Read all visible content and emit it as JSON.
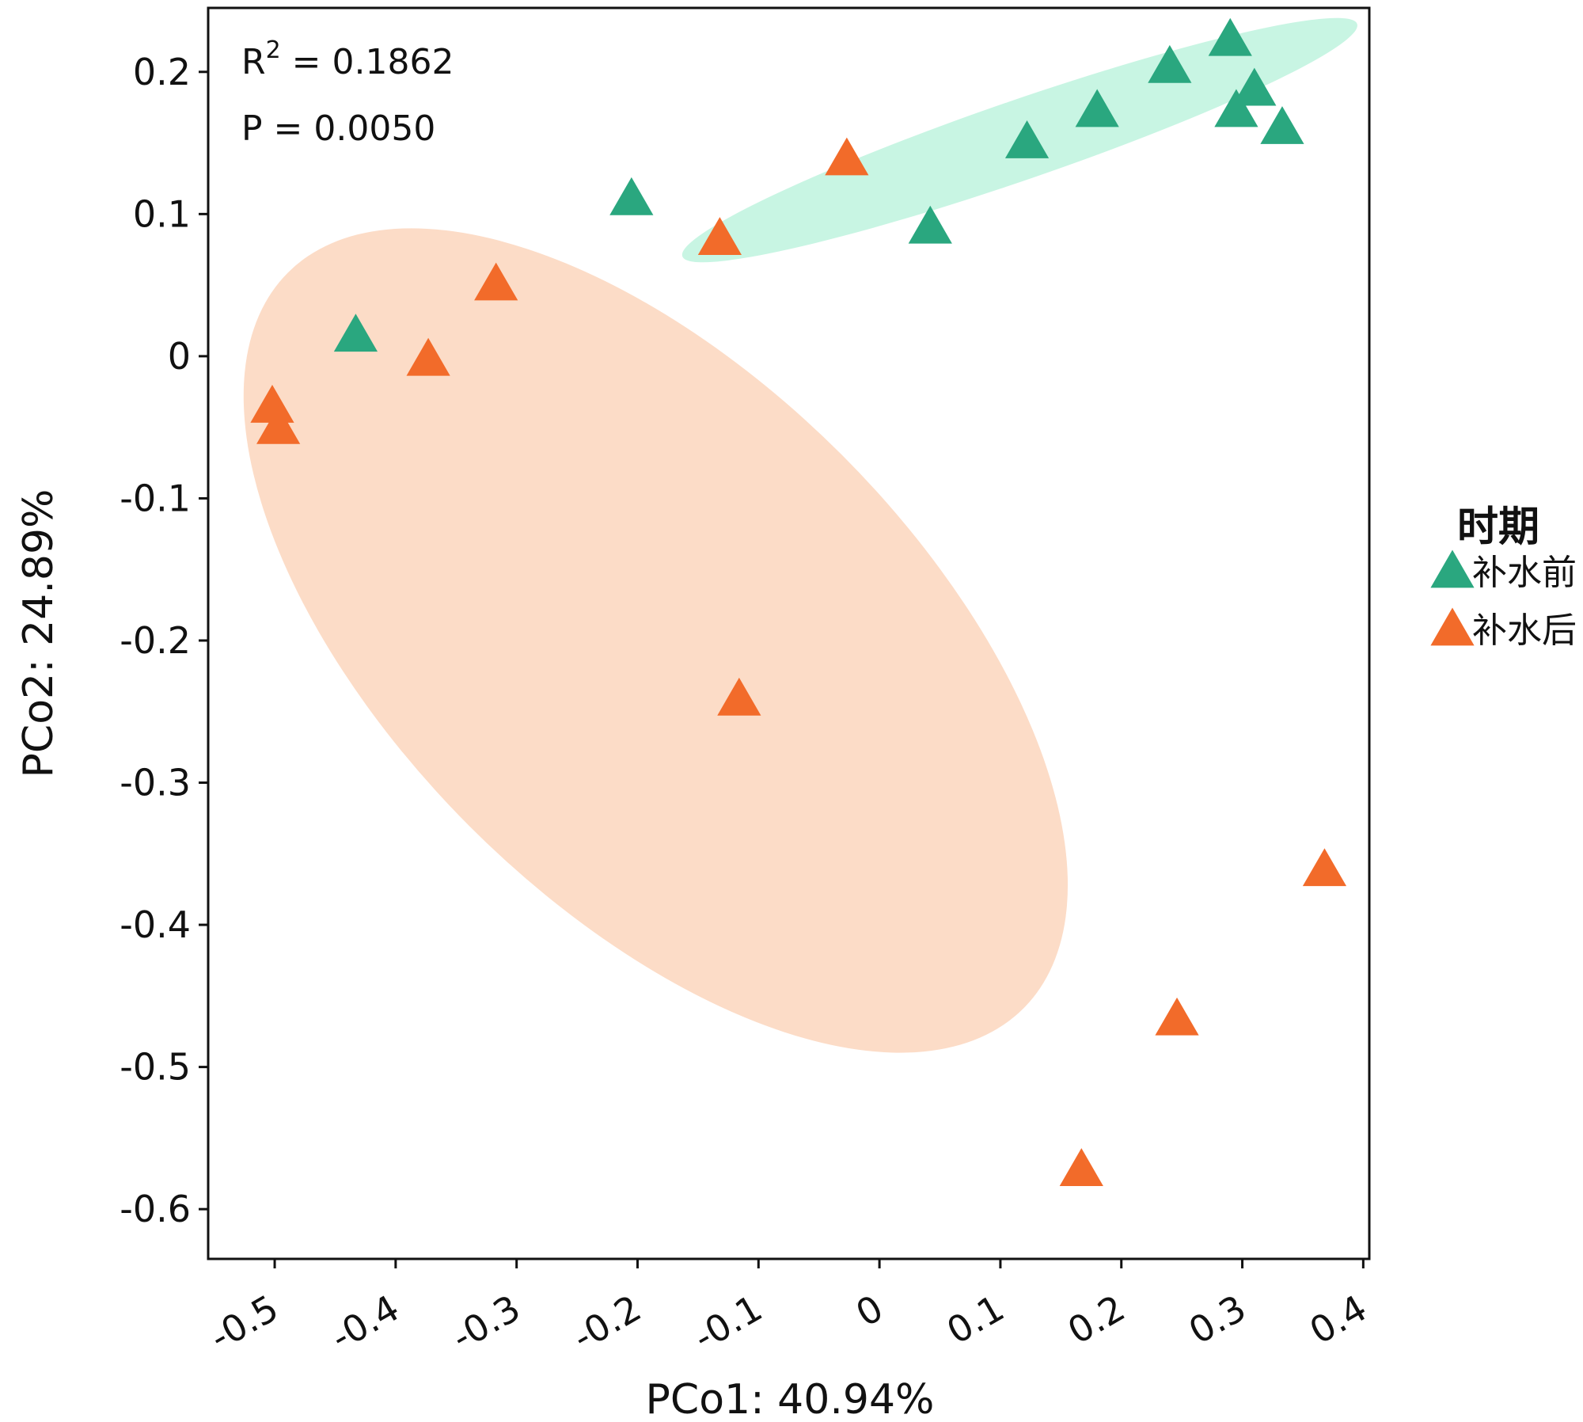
{
  "chart_data": {
    "type": "scatter",
    "title": "",
    "xlabel": "PCo1: 40.94%",
    "ylabel": "PCo2: 24.89%",
    "xlim": [
      -0.555,
      0.405
    ],
    "ylim": [
      -0.635,
      0.245
    ],
    "x_ticks": [
      {
        "value": -0.5,
        "label": "-0.5"
      },
      {
        "value": -0.4,
        "label": "-0.4"
      },
      {
        "value": -0.3,
        "label": "-0.3"
      },
      {
        "value": -0.2,
        "label": "-0.2"
      },
      {
        "value": -0.1,
        "label": "-0.1"
      },
      {
        "value": 0,
        "label": "0"
      },
      {
        "value": 0.1,
        "label": "0.1"
      },
      {
        "value": 0.2,
        "label": "0.2"
      },
      {
        "value": 0.3,
        "label": "0.3"
      },
      {
        "value": 0.4,
        "label": "0.4"
      }
    ],
    "y_ticks": [
      {
        "value": 0.2,
        "label": "0.2"
      },
      {
        "value": 0.1,
        "label": "0.1"
      },
      {
        "value": 0,
        "label": "0"
      },
      {
        "value": -0.1,
        "label": "-0.1"
      },
      {
        "value": -0.2,
        "label": "-0.2"
      },
      {
        "value": -0.3,
        "label": "-0.3"
      },
      {
        "value": -0.4,
        "label": "-0.4"
      },
      {
        "value": -0.5,
        "label": "-0.5"
      },
      {
        "value": -0.6,
        "label": "-0.6"
      }
    ],
    "annotations": {
      "r2_prefix": "R",
      "r2_superscript": "2",
      "r2_value": " = 0.1862",
      "p_text": "P = 0.0050"
    },
    "legend": {
      "title": "时期",
      "position": "right"
    },
    "series": [
      {
        "name": "补水前",
        "color": "#2aa77f",
        "ellipse_color": "#c8f5e3",
        "ellipse": {
          "cx": 0.116,
          "cy": 0.152,
          "rx": 0.295,
          "ry": 0.028,
          "angle": 19
        },
        "points": [
          {
            "x": 0.29,
            "y": 0.222
          },
          {
            "x": 0.24,
            "y": 0.203
          },
          {
            "x": 0.31,
            "y": 0.187
          },
          {
            "x": 0.18,
            "y": 0.172
          },
          {
            "x": 0.295,
            "y": 0.172
          },
          {
            "x": 0.333,
            "y": 0.16
          },
          {
            "x": 0.122,
            "y": 0.15
          },
          {
            "x": -0.205,
            "y": 0.11
          },
          {
            "x": 0.042,
            "y": 0.09
          },
          {
            "x": -0.433,
            "y": 0.014
          }
        ]
      },
      {
        "name": "补水后",
        "color": "#f26b2a",
        "ellipse_color": "#fcdcc7",
        "ellipse": {
          "cx": -0.185,
          "cy": -0.2,
          "rx": 0.43,
          "ry": 0.185,
          "angle": -45
        },
        "points": [
          {
            "x": -0.027,
            "y": 0.138
          },
          {
            "x": -0.132,
            "y": 0.082
          },
          {
            "x": -0.317,
            "y": 0.05
          },
          {
            "x": -0.373,
            "y": -0.003
          },
          {
            "x": -0.502,
            "y": -0.036
          },
          {
            "x": -0.497,
            "y": -0.051
          },
          {
            "x": -0.116,
            "y": -0.242
          },
          {
            "x": 0.368,
            "y": -0.362
          },
          {
            "x": 0.246,
            "y": -0.467
          },
          {
            "x": 0.167,
            "y": -0.573
          }
        ]
      }
    ]
  }
}
